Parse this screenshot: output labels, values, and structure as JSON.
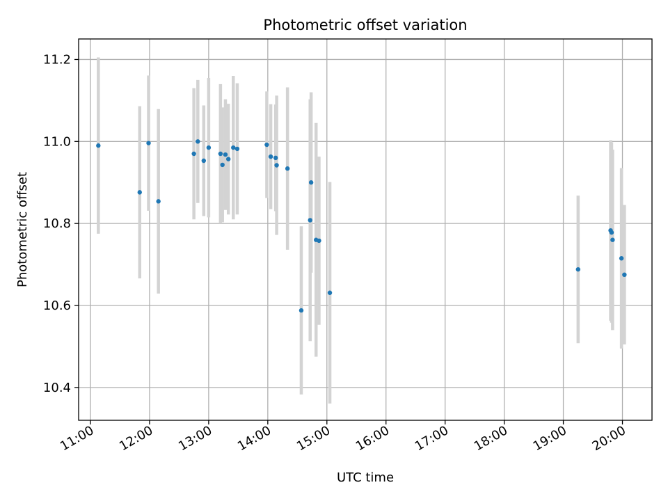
{
  "chart_data": {
    "type": "scatter",
    "title": "Photometric offset variation",
    "xlabel": "UTC time",
    "ylabel": "Photometric offset",
    "x_unit": "time of day (HH:MM)",
    "xlim": [
      "10:48",
      "20:30"
    ],
    "ylim": [
      10.32,
      11.25
    ],
    "x_ticks": [
      "11:00",
      "12:00",
      "13:00",
      "14:00",
      "15:00",
      "16:00",
      "17:00",
      "18:00",
      "19:00",
      "20:00"
    ],
    "y_ticks": [
      10.4,
      10.6,
      10.8,
      11.0,
      11.2
    ],
    "grid": true,
    "marker_color": "#1f77b4",
    "errorbar_color": "#d3d3d3",
    "series": [
      {
        "points": [
          {
            "x": "11:08",
            "y": 10.99,
            "err": 0.215
          },
          {
            "x": "11:50",
            "y": 10.876,
            "err": 0.21
          },
          {
            "x": "11:59",
            "y": 10.996,
            "err": 0.165
          },
          {
            "x": "12:09",
            "y": 10.854,
            "err": 0.225
          },
          {
            "x": "12:45",
            "y": 10.97,
            "err": 0.16
          },
          {
            "x": "12:49",
            "y": 11.0,
            "err": 0.15
          },
          {
            "x": "12:55",
            "y": 10.953,
            "err": 0.135
          },
          {
            "x": "13:00",
            "y": 10.985,
            "err": 0.17
          },
          {
            "x": "13:12",
            "y": 10.97,
            "err": 0.17
          },
          {
            "x": "13:14",
            "y": 10.943,
            "err": 0.14
          },
          {
            "x": "13:17",
            "y": 10.968,
            "err": 0.135
          },
          {
            "x": "13:20",
            "y": 10.957,
            "err": 0.135
          },
          {
            "x": "13:25",
            "y": 10.985,
            "err": 0.175
          },
          {
            "x": "13:29",
            "y": 10.982,
            "err": 0.16
          },
          {
            "x": "13:59",
            "y": 10.992,
            "err": 0.13
          },
          {
            "x": "14:03",
            "y": 10.963,
            "err": 0.128
          },
          {
            "x": "14:08",
            "y": 10.96,
            "err": 0.13
          },
          {
            "x": "14:09",
            "y": 10.942,
            "err": 0.17
          },
          {
            "x": "14:20",
            "y": 10.934,
            "err": 0.198
          },
          {
            "x": "14:34",
            "y": 10.588,
            "err": 0.205
          },
          {
            "x": "14:43",
            "y": 10.808,
            "err": 0.295
          },
          {
            "x": "14:44",
            "y": 10.9,
            "err": 0.22
          },
          {
            "x": "14:49",
            "y": 10.76,
            "err": 0.285
          },
          {
            "x": "14:52",
            "y": 10.758,
            "err": 0.205
          },
          {
            "x": "15:03",
            "y": 10.631,
            "err": 0.27
          },
          {
            "x": "19:15",
            "y": 10.688,
            "err": 0.18
          },
          {
            "x": "19:48",
            "y": 10.783,
            "err": 0.22
          },
          {
            "x": "19:49",
            "y": 10.778,
            "err": 0.22
          },
          {
            "x": "19:50",
            "y": 10.76,
            "err": 0.22
          },
          {
            "x": "19:59",
            "y": 10.715,
            "err": 0.22
          },
          {
            "x": "20:02",
            "y": 10.675,
            "err": 0.17
          }
        ]
      }
    ]
  }
}
